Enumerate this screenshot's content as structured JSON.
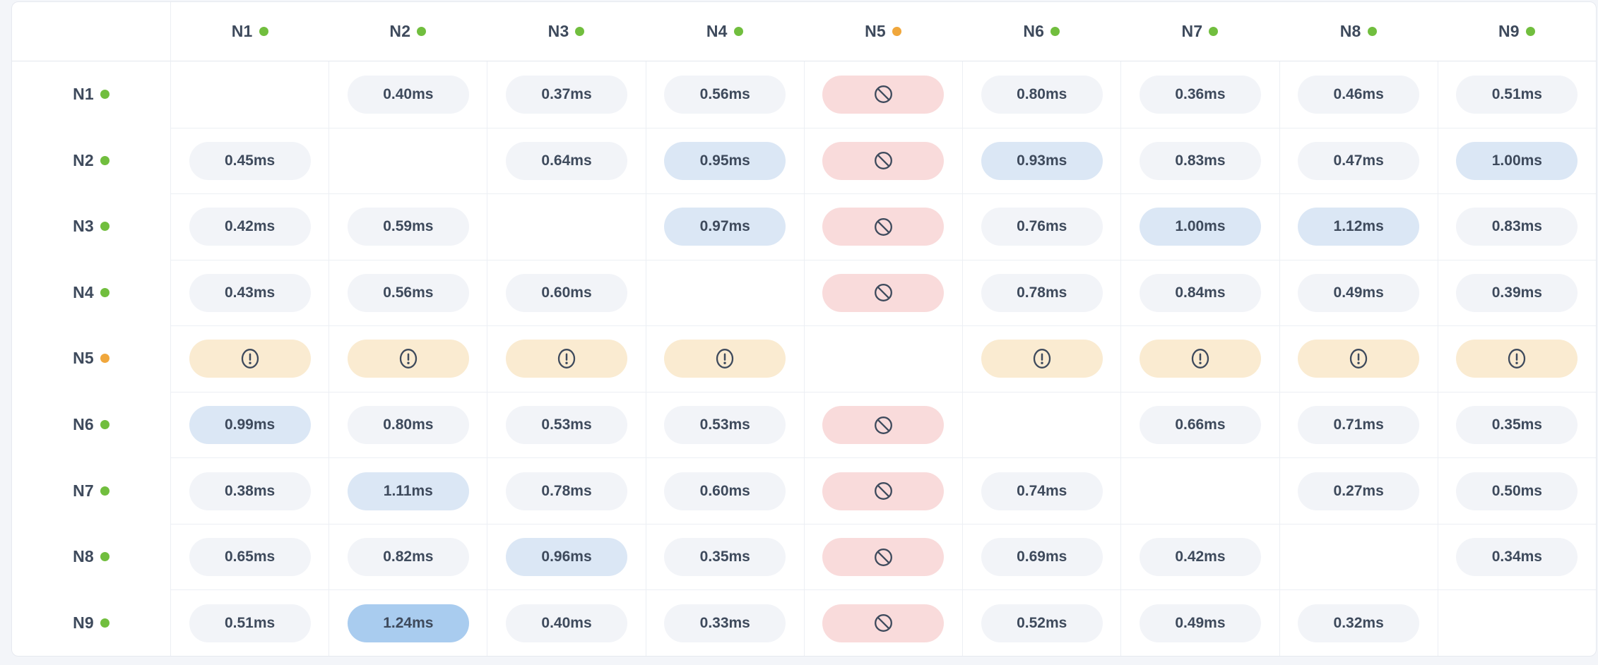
{
  "colors": {
    "page_bg": "#F3F5F9",
    "card_bg": "#FFFFFF",
    "card_border": "#E6E9EF",
    "grid_line": "#ECEFF4",
    "header_line": "#E3E7EE",
    "text": "#3E4A5C",
    "status_ok": "#71BE3E",
    "status_warn": "#F0A73C",
    "pill_normal": "#F2F4F8",
    "pill_elevated": "#DBE7F5",
    "pill_high": "#A9CCEF",
    "pill_blocked": "#F9DBDB",
    "pill_warning": "#FAEBD1"
  },
  "icons": {
    "blocked": "ban-icon",
    "warning": "alert-icon",
    "status": "status-dot"
  },
  "matrix": {
    "type": "latency-heatmap-table",
    "unit": "ms",
    "columns": [
      {
        "id": "N1",
        "status": "ok"
      },
      {
        "id": "N2",
        "status": "ok"
      },
      {
        "id": "N3",
        "status": "ok"
      },
      {
        "id": "N4",
        "status": "ok"
      },
      {
        "id": "N5",
        "status": "warn"
      },
      {
        "id": "N6",
        "status": "ok"
      },
      {
        "id": "N7",
        "status": "ok"
      },
      {
        "id": "N8",
        "status": "ok"
      },
      {
        "id": "N9",
        "status": "ok"
      }
    ],
    "rows": [
      {
        "id": "N1",
        "status": "ok",
        "cells": [
          {
            "type": "self"
          },
          {
            "type": "latency",
            "v": "0.40ms",
            "tone": "normal"
          },
          {
            "type": "latency",
            "v": "0.37ms",
            "tone": "normal"
          },
          {
            "type": "latency",
            "v": "0.56ms",
            "tone": "normal"
          },
          {
            "type": "blocked"
          },
          {
            "type": "latency",
            "v": "0.80ms",
            "tone": "normal"
          },
          {
            "type": "latency",
            "v": "0.36ms",
            "tone": "normal"
          },
          {
            "type": "latency",
            "v": "0.46ms",
            "tone": "normal"
          },
          {
            "type": "latency",
            "v": "0.51ms",
            "tone": "normal"
          }
        ]
      },
      {
        "id": "N2",
        "status": "ok",
        "cells": [
          {
            "type": "latency",
            "v": "0.45ms",
            "tone": "normal"
          },
          {
            "type": "self"
          },
          {
            "type": "latency",
            "v": "0.64ms",
            "tone": "normal"
          },
          {
            "type": "latency",
            "v": "0.95ms",
            "tone": "elevated"
          },
          {
            "type": "blocked"
          },
          {
            "type": "latency",
            "v": "0.93ms",
            "tone": "elevated"
          },
          {
            "type": "latency",
            "v": "0.83ms",
            "tone": "normal"
          },
          {
            "type": "latency",
            "v": "0.47ms",
            "tone": "normal"
          },
          {
            "type": "latency",
            "v": "1.00ms",
            "tone": "elevated"
          }
        ]
      },
      {
        "id": "N3",
        "status": "ok",
        "cells": [
          {
            "type": "latency",
            "v": "0.42ms",
            "tone": "normal"
          },
          {
            "type": "latency",
            "v": "0.59ms",
            "tone": "normal"
          },
          {
            "type": "self"
          },
          {
            "type": "latency",
            "v": "0.97ms",
            "tone": "elevated"
          },
          {
            "type": "blocked"
          },
          {
            "type": "latency",
            "v": "0.76ms",
            "tone": "normal"
          },
          {
            "type": "latency",
            "v": "1.00ms",
            "tone": "elevated"
          },
          {
            "type": "latency",
            "v": "1.12ms",
            "tone": "elevated"
          },
          {
            "type": "latency",
            "v": "0.83ms",
            "tone": "normal"
          }
        ]
      },
      {
        "id": "N4",
        "status": "ok",
        "cells": [
          {
            "type": "latency",
            "v": "0.43ms",
            "tone": "normal"
          },
          {
            "type": "latency",
            "v": "0.56ms",
            "tone": "normal"
          },
          {
            "type": "latency",
            "v": "0.60ms",
            "tone": "normal"
          },
          {
            "type": "self"
          },
          {
            "type": "blocked"
          },
          {
            "type": "latency",
            "v": "0.78ms",
            "tone": "normal"
          },
          {
            "type": "latency",
            "v": "0.84ms",
            "tone": "normal"
          },
          {
            "type": "latency",
            "v": "0.49ms",
            "tone": "normal"
          },
          {
            "type": "latency",
            "v": "0.39ms",
            "tone": "normal"
          }
        ]
      },
      {
        "id": "N5",
        "status": "warn",
        "cells": [
          {
            "type": "warning"
          },
          {
            "type": "warning"
          },
          {
            "type": "warning"
          },
          {
            "type": "warning"
          },
          {
            "type": "self"
          },
          {
            "type": "warning"
          },
          {
            "type": "warning"
          },
          {
            "type": "warning"
          },
          {
            "type": "warning"
          }
        ]
      },
      {
        "id": "N6",
        "status": "ok",
        "cells": [
          {
            "type": "latency",
            "v": "0.99ms",
            "tone": "elevated"
          },
          {
            "type": "latency",
            "v": "0.80ms",
            "tone": "normal"
          },
          {
            "type": "latency",
            "v": "0.53ms",
            "tone": "normal"
          },
          {
            "type": "latency",
            "v": "0.53ms",
            "tone": "normal"
          },
          {
            "type": "blocked"
          },
          {
            "type": "self"
          },
          {
            "type": "latency",
            "v": "0.66ms",
            "tone": "normal"
          },
          {
            "type": "latency",
            "v": "0.71ms",
            "tone": "normal"
          },
          {
            "type": "latency",
            "v": "0.35ms",
            "tone": "normal"
          }
        ]
      },
      {
        "id": "N7",
        "status": "ok",
        "cells": [
          {
            "type": "latency",
            "v": "0.38ms",
            "tone": "normal"
          },
          {
            "type": "latency",
            "v": "1.11ms",
            "tone": "elevated"
          },
          {
            "type": "latency",
            "v": "0.78ms",
            "tone": "normal"
          },
          {
            "type": "latency",
            "v": "0.60ms",
            "tone": "normal"
          },
          {
            "type": "blocked"
          },
          {
            "type": "latency",
            "v": "0.74ms",
            "tone": "normal"
          },
          {
            "type": "self"
          },
          {
            "type": "latency",
            "v": "0.27ms",
            "tone": "normal"
          },
          {
            "type": "latency",
            "v": "0.50ms",
            "tone": "normal"
          }
        ]
      },
      {
        "id": "N8",
        "status": "ok",
        "cells": [
          {
            "type": "latency",
            "v": "0.65ms",
            "tone": "normal"
          },
          {
            "type": "latency",
            "v": "0.82ms",
            "tone": "normal"
          },
          {
            "type": "latency",
            "v": "0.96ms",
            "tone": "elevated"
          },
          {
            "type": "latency",
            "v": "0.35ms",
            "tone": "normal"
          },
          {
            "type": "blocked"
          },
          {
            "type": "latency",
            "v": "0.69ms",
            "tone": "normal"
          },
          {
            "type": "latency",
            "v": "0.42ms",
            "tone": "normal"
          },
          {
            "type": "self"
          },
          {
            "type": "latency",
            "v": "0.34ms",
            "tone": "normal"
          }
        ]
      },
      {
        "id": "N9",
        "status": "ok",
        "cells": [
          {
            "type": "latency",
            "v": "0.51ms",
            "tone": "normal"
          },
          {
            "type": "latency",
            "v": "1.24ms",
            "tone": "high"
          },
          {
            "type": "latency",
            "v": "0.40ms",
            "tone": "normal"
          },
          {
            "type": "latency",
            "v": "0.33ms",
            "tone": "normal"
          },
          {
            "type": "blocked"
          },
          {
            "type": "latency",
            "v": "0.52ms",
            "tone": "normal"
          },
          {
            "type": "latency",
            "v": "0.49ms",
            "tone": "normal"
          },
          {
            "type": "latency",
            "v": "0.32ms",
            "tone": "normal"
          },
          {
            "type": "self"
          }
        ]
      }
    ]
  }
}
